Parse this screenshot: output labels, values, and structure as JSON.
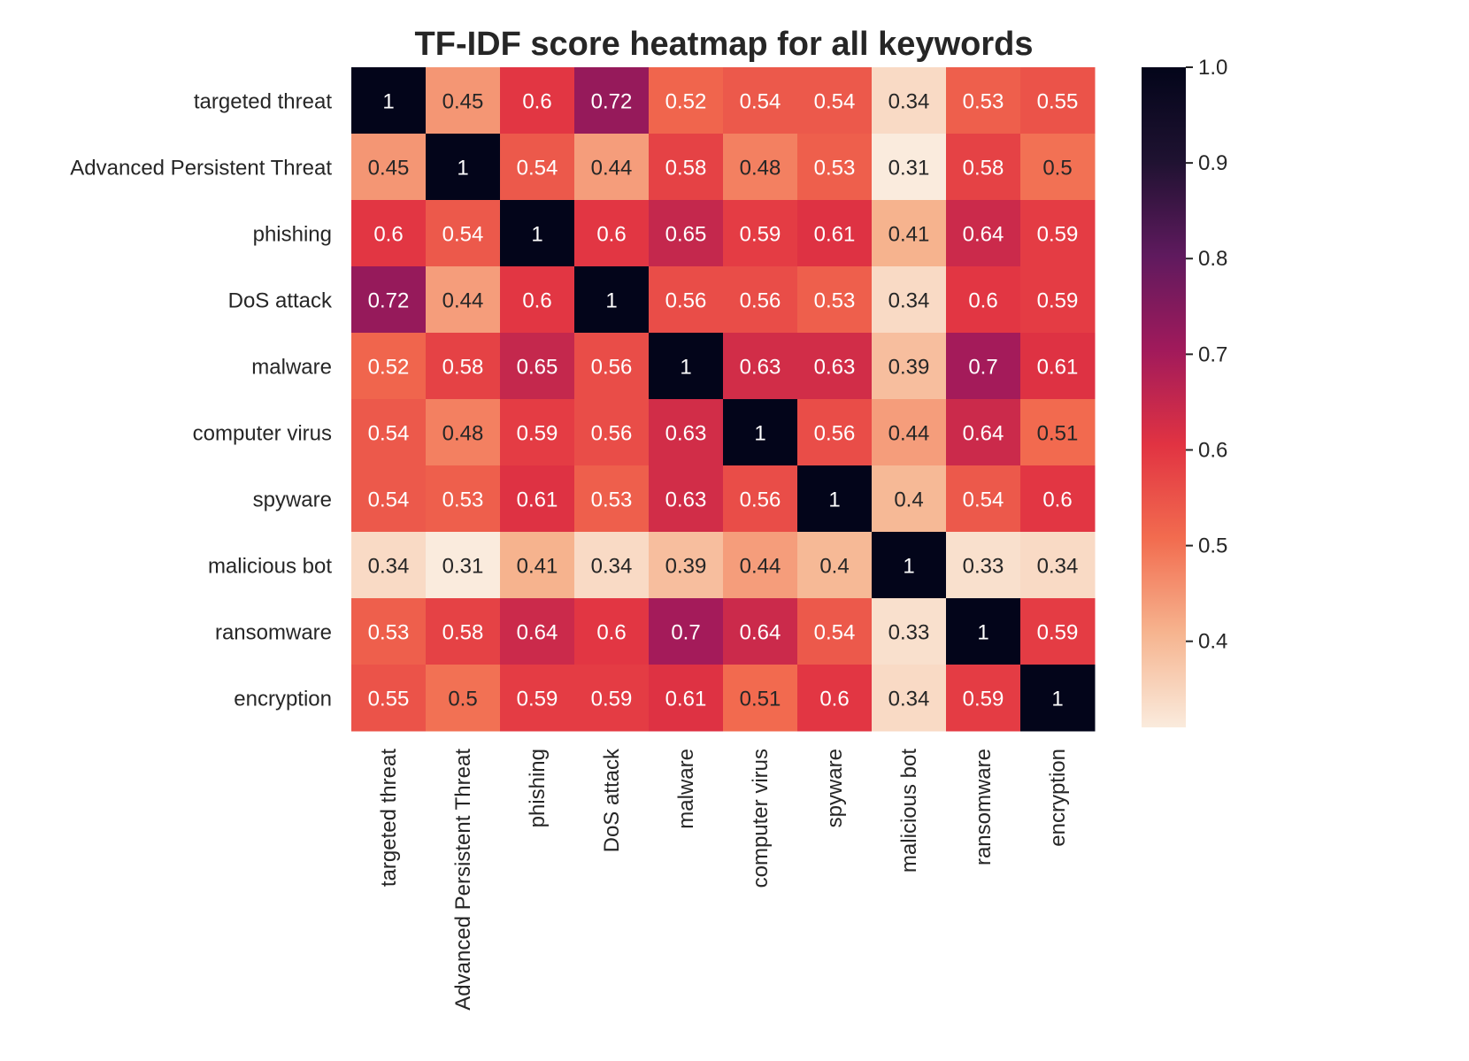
{
  "chart_data": {
    "type": "heatmap",
    "title": "TF-IDF score heatmap for all keywords",
    "row_labels": [
      "targeted threat",
      "Advanced Persistent Threat",
      "phishing",
      "DoS attack",
      "malware",
      "computer virus",
      "spyware",
      "malicious bot",
      "ransomware",
      "encryption"
    ],
    "col_labels": [
      "targeted threat",
      "Advanced Persistent Threat",
      "phishing",
      "DoS attack",
      "malware",
      "computer virus",
      "spyware",
      "malicious bot",
      "ransomware",
      "encryption"
    ],
    "values": [
      [
        1,
        0.45,
        0.6,
        0.72,
        0.52,
        0.54,
        0.54,
        0.34,
        0.53,
        0.55
      ],
      [
        0.45,
        1,
        0.54,
        0.44,
        0.58,
        0.48,
        0.53,
        0.31,
        0.58,
        0.5
      ],
      [
        0.6,
        0.54,
        1,
        0.6,
        0.65,
        0.59,
        0.61,
        0.41,
        0.64,
        0.59
      ],
      [
        0.72,
        0.44,
        0.6,
        1,
        0.56,
        0.56,
        0.53,
        0.34,
        0.6,
        0.59
      ],
      [
        0.52,
        0.58,
        0.65,
        0.56,
        1,
        0.63,
        0.63,
        0.39,
        0.7,
        0.61
      ],
      [
        0.54,
        0.48,
        0.59,
        0.56,
        0.63,
        1,
        0.56,
        0.44,
        0.64,
        0.51
      ],
      [
        0.54,
        0.53,
        0.61,
        0.53,
        0.63,
        0.56,
        1,
        0.4,
        0.54,
        0.6
      ],
      [
        0.34,
        0.31,
        0.41,
        0.34,
        0.39,
        0.44,
        0.4,
        1,
        0.33,
        0.34
      ],
      [
        0.53,
        0.58,
        0.64,
        0.6,
        0.7,
        0.64,
        0.54,
        0.33,
        1,
        0.59
      ],
      [
        0.55,
        0.5,
        0.59,
        0.59,
        0.61,
        0.51,
        0.6,
        0.34,
        0.59,
        1
      ]
    ],
    "colorbar": {
      "ticks": [
        "0.4",
        "0.5",
        "0.6",
        "0.7",
        "0.8",
        "0.9",
        "1.0"
      ],
      "range": [
        0.31,
        1.0
      ],
      "colormap": "rocket_r",
      "colors": [
        "#faebdd",
        "#f6b48f",
        "#f26c4f",
        "#e13342",
        "#a11a5b",
        "#5f1a5e",
        "#1f1231",
        "#03051a"
      ]
    },
    "annotations": true,
    "grid": false
  }
}
